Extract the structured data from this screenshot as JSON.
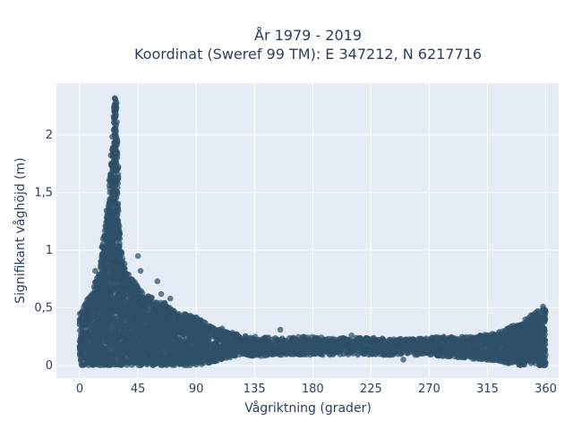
{
  "chart_data": {
    "type": "scatter",
    "title": [
      "År 1979 - 2019",
      "Koordinat (Sweref 99 TM): E 347212, N 6217716"
    ],
    "xlabel": "Vågriktning (grader)",
    "ylabel": "Signifikant våghöjd (m)",
    "xlim": [
      -18,
      370
    ],
    "ylim": [
      -0.11,
      2.45
    ],
    "x_ticks": [
      0,
      45,
      90,
      135,
      180,
      225,
      270,
      315,
      360
    ],
    "x_tick_labels": [
      "0",
      "45",
      "90",
      "135",
      "180",
      "225",
      "270",
      "315",
      "360"
    ],
    "y_ticks": [
      0,
      0.5,
      1,
      1.5,
      2
    ],
    "y_tick_labels": [
      "0",
      "0,5",
      "1",
      "1,5",
      "2"
    ],
    "grid": true,
    "marker_color": "#2e5168",
    "background_color": "#e5ecf6",
    "envelope": {
      "x": [
        0,
        5,
        10,
        15,
        18,
        20,
        22,
        24,
        25,
        26,
        27,
        28,
        29,
        30,
        32,
        35,
        40,
        45,
        50,
        55,
        60,
        65,
        70,
        75,
        80,
        90,
        100,
        110,
        120,
        130,
        140,
        150,
        160,
        170,
        180,
        190,
        200,
        210,
        220,
        230,
        240,
        250,
        260,
        270,
        280,
        290,
        300,
        310,
        320,
        325,
        330,
        335,
        340,
        345,
        350,
        355,
        360
      ],
      "y_min": [
        0,
        0,
        0,
        0,
        0,
        0,
        0,
        0,
        0,
        0,
        0,
        0,
        0,
        0,
        0,
        0,
        0,
        0,
        0,
        0,
        0,
        0,
        0,
        0,
        0,
        0,
        0.02,
        0.05,
        0.08,
        0.08,
        0.08,
        0.09,
        0.09,
        0.09,
        0.09,
        0.09,
        0.09,
        0.09,
        0.09,
        0.09,
        0.09,
        0.09,
        0.09,
        0.09,
        0.08,
        0.07,
        0.06,
        0.05,
        0.04,
        0.03,
        0.02,
        0.01,
        0,
        0,
        0,
        0,
        0
      ],
      "y_max": [
        0.45,
        0.55,
        0.65,
        0.85,
        1.1,
        1.25,
        1.45,
        1.75,
        1.95,
        2.15,
        2.32,
        2.3,
        2.1,
        1.3,
        1.0,
        0.85,
        0.75,
        0.7,
        0.6,
        0.6,
        0.55,
        0.55,
        0.5,
        0.45,
        0.45,
        0.42,
        0.35,
        0.3,
        0.28,
        0.25,
        0.25,
        0.24,
        0.24,
        0.25,
        0.25,
        0.24,
        0.24,
        0.24,
        0.24,
        0.24,
        0.23,
        0.23,
        0.23,
        0.24,
        0.25,
        0.25,
        0.25,
        0.26,
        0.28,
        0.3,
        0.32,
        0.35,
        0.38,
        0.42,
        0.45,
        0.48,
        0.5
      ]
    },
    "outliers": [
      {
        "x": 27,
        "y": 2.32
      },
      {
        "x": 28,
        "y": 2.25
      },
      {
        "x": 24,
        "y": 1.28
      },
      {
        "x": 18,
        "y": 1.1
      },
      {
        "x": 12,
        "y": 0.82
      },
      {
        "x": 45,
        "y": 0.95
      },
      {
        "x": 47,
        "y": 0.82
      },
      {
        "x": 60,
        "y": 0.73
      },
      {
        "x": 63,
        "y": 0.62
      },
      {
        "x": 70,
        "y": 0.58
      },
      {
        "x": 100,
        "y": 0.34
      },
      {
        "x": 110,
        "y": 0.32
      },
      {
        "x": 155,
        "y": 0.31
      },
      {
        "x": 210,
        "y": 0.26
      },
      {
        "x": 250,
        "y": 0.05
      },
      {
        "x": 358,
        "y": 0.51
      },
      {
        "x": 355,
        "y": 0.44
      }
    ]
  }
}
